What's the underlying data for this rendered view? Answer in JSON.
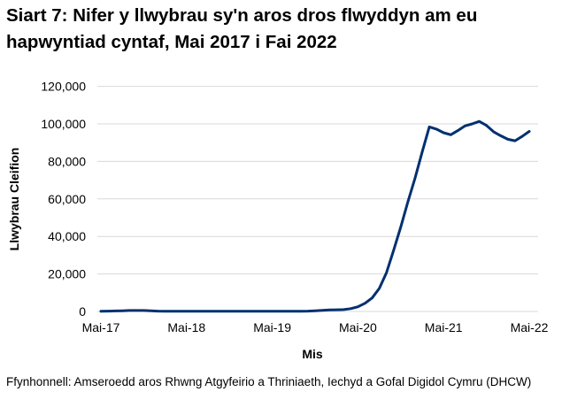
{
  "chart_data": {
    "type": "line",
    "title": "Siart 7: Nifer y llwybrau sy'n aros dros flwyddyn am eu hapwyntiad cyntaf, Mai 2017 i Fai 2022",
    "xlabel": "Mis",
    "ylabel": "Llwybrau Cleifion",
    "ylim": [
      0,
      120000
    ],
    "yticks": [
      0,
      20000,
      40000,
      60000,
      80000,
      100000,
      120000
    ],
    "ytick_labels": [
      "0",
      "20,000",
      "40,000",
      "60,000",
      "80,000",
      "100,000",
      "120,000"
    ],
    "xtick_labels": [
      "Mai-17",
      "Mai-18",
      "Mai-19",
      "Mai-20",
      "Mai-21",
      "Mai-22"
    ],
    "grid": true,
    "line_color": "#003070",
    "x_start": "Mai-17",
    "x_end": "Mai-22",
    "series": [
      {
        "values": [
          100,
          200,
          300,
          400,
          500,
          500,
          500,
          400,
          200,
          100,
          100,
          100,
          100,
          100,
          100,
          100,
          100,
          100,
          100,
          100,
          100,
          100,
          100,
          100,
          100,
          100,
          100,
          100,
          100,
          200,
          400,
          600,
          800,
          900,
          1000,
          1500,
          2500,
          4400,
          7200,
          12300,
          20700,
          32500,
          45000,
          58500,
          71000,
          85000,
          98400,
          97200,
          95300,
          94200,
          96400,
          98900,
          100000,
          101300,
          99200,
          95800,
          93700,
          91800,
          91000,
          93300,
          96000
        ]
      }
    ]
  },
  "source": "Ffynhonnell: Amseroedd aros Rhwng Atgyfeirio a Thriniaeth, Iechyd a Gofal Digidol Cymru (DHCW)"
}
